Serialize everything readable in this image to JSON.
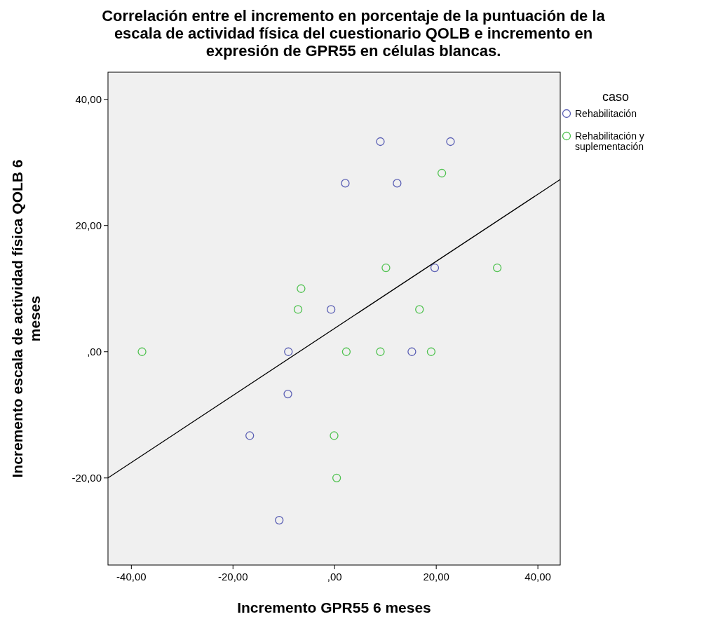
{
  "chart_data": {
    "type": "scatter",
    "title": "Correlación  entre el incremento en porcentaje de la puntuación de la escala de actividad física del cuestionario QOLB e incremento en expresión de GPR55 en células blancas.",
    "xlabel": "Incremento GPR55 6 meses",
    "ylabel": "Incremento escala de actividad física QOLB 6 meses",
    "legend_title": "caso",
    "legend": "top right",
    "marker": "circle",
    "grid": false,
    "xlim": [
      -44.6,
      44.4
    ],
    "ylim": [
      -33.8,
      44.3
    ],
    "xticks": [
      {
        "value": -40,
        "label": "-40,00"
      },
      {
        "value": -20,
        "label": "-20,00"
      },
      {
        "value": 0,
        "label": ",00"
      },
      {
        "value": 20,
        "label": "20,00"
      },
      {
        "value": 40,
        "label": "40,00"
      }
    ],
    "yticks": [
      {
        "value": -20,
        "label": "-20,00"
      },
      {
        "value": 0,
        "label": ",00"
      },
      {
        "value": 20,
        "label": "20,00"
      },
      {
        "value": 40,
        "label": "40,00"
      }
    ],
    "series": [
      {
        "name": "Rehabilitación",
        "color": "#5a5fb4",
        "x": [
          9.0,
          22.8,
          2.1,
          12.3,
          19.7,
          -0.7,
          -9.1,
          15.2,
          -9.2,
          -16.7,
          -10.9
        ],
        "values": [
          33.3,
          33.3,
          26.7,
          26.7,
          13.3,
          6.7,
          0,
          0,
          -6.7,
          -13.3,
          -26.7
        ]
      },
      {
        "name": "Rehabilitación y suplementación",
        "color": "#4fc24f",
        "x": [
          -37.9,
          21.1,
          10.1,
          32.0,
          -6.6,
          -7.2,
          16.7,
          2.3,
          9.0,
          19.0,
          -0.1,
          0.4
        ],
        "values": [
          0,
          28.3,
          13.3,
          13.3,
          10,
          6.7,
          6.7,
          0,
          0,
          0,
          -13.3,
          -20
        ]
      },
      {
        "type": "line",
        "marker": "none",
        "color": "#000000",
        "x": [
          -44.6,
          44.4
        ],
        "values": [
          -20,
          27.3
        ]
      }
    ]
  }
}
